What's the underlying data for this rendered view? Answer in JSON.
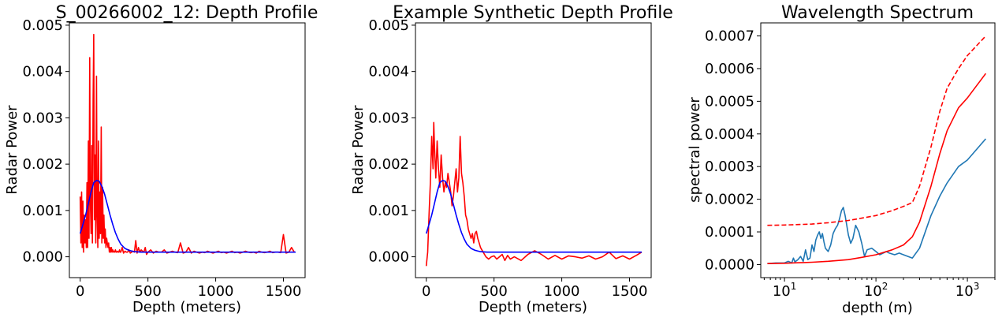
{
  "chart_data": [
    {
      "type": "line",
      "title": "S_00266002_12: Depth Profile",
      "xlabel": "Depth (meters)",
      "ylabel": "Radar Power",
      "xlim": [
        -80,
        1660
      ],
      "ylim": [
        -0.00045,
        0.00505
      ],
      "xticks": [
        0,
        500,
        1000,
        1500
      ],
      "xtick_labels": [
        "0",
        "500",
        "1000",
        "1500"
      ],
      "yticks": [
        0,
        0.001,
        0.002,
        0.003,
        0.004,
        0.005
      ],
      "ytick_labels": [
        "0.000",
        "0.001",
        "0.002",
        "0.003",
        "0.004",
        "0.005"
      ],
      "series": [
        {
          "color": "#ff0000",
          "style": "solid",
          "x": [
            0,
            5,
            10,
            15,
            20,
            25,
            30,
            35,
            40,
            45,
            50,
            55,
            60,
            65,
            70,
            75,
            80,
            85,
            90,
            95,
            100,
            105,
            110,
            115,
            120,
            125,
            130,
            135,
            140,
            145,
            150,
            155,
            160,
            165,
            170,
            175,
            180,
            185,
            190,
            195,
            200,
            205,
            210,
            215,
            220,
            225,
            230,
            235,
            240,
            245,
            250,
            255,
            260,
            265,
            270,
            275,
            280,
            285,
            290,
            295,
            300,
            310,
            320,
            330,
            340,
            350,
            360,
            370,
            380,
            390,
            400,
            410,
            420,
            430,
            440,
            450,
            460,
            470,
            480,
            490,
            500,
            520,
            540,
            560,
            580,
            600,
            620,
            640,
            660,
            680,
            700,
            720,
            740,
            760,
            780,
            800,
            820,
            840,
            860,
            880,
            900,
            920,
            940,
            960,
            980,
            1000,
            1020,
            1040,
            1060,
            1080,
            1100,
            1120,
            1140,
            1160,
            1180,
            1200,
            1220,
            1240,
            1260,
            1280,
            1300,
            1320,
            1340,
            1360,
            1380,
            1400,
            1420,
            1440,
            1460,
            1480,
            1500,
            1520,
            1540,
            1560,
            1580
          ],
          "y": [
            0.0013,
            0.0003,
            0.0014,
            0.0002,
            0.0012,
            0.0001,
            0.0009,
            0.0003,
            0.0008,
            0.0002,
            0.0016,
            0.0002,
            0.0025,
            0.0004,
            0.0043,
            0.0012,
            0.0005,
            0.0024,
            0.0003,
            0.0034,
            0.0048,
            0.0008,
            0.0022,
            0.0003,
            0.0039,
            0.0009,
            0.0002,
            0.0025,
            0.0004,
            0.0014,
            0.0005,
            0.0028,
            0.0003,
            0.0015,
            0.0004,
            0.0009,
            0.0003,
            0.0006,
            0.0002,
            0.0004,
            0.0003,
            0.0002,
            0.0003,
            0.0001,
            0.0002,
            0.0001,
            0.0002,
            0.0001,
            0.00015,
            0.0001,
            0.00012,
            0.0001,
            0.00015,
            0.0001,
            0.0001,
            0.00012,
            0.0001,
            0.0001,
            0.00015,
            0.0001,
            0.0001,
            0.0002,
            8e-05,
            0.00012,
            0.0001,
            0.0001,
            0.00015,
            8e-05,
            0.0001,
            0.00012,
            0.0001,
            0.00035,
            8e-05,
            0.0002,
            0.0001,
            0.00015,
            0.00012,
            0.0001,
            0.0002,
            5e-05,
            0.0001,
            0.00015,
            8e-05,
            0.00012,
            0.0001,
            0.0001,
            0.00015,
            8e-05,
            0.0001,
            0.00012,
            0.0001,
            9e-05,
            0.0003,
            8e-05,
            0.0001,
            0.0002,
            8e-05,
            0.00012,
            0.0001,
            8e-05,
            0.0001,
            9e-05,
            0.00012,
            0.0001,
            8e-05,
            0.0001,
            0.00012,
            9e-05,
            0.0001,
            8e-05,
            0.0001,
            0.00012,
            9e-05,
            0.0001,
            8e-05,
            0.0001,
            0.00012,
            0.0001,
            9e-05,
            0.0001,
            8e-05,
            0.00012,
            0.0001,
            9e-05,
            0.0001,
            0.00012,
            9e-05,
            0.0001,
            0.0001,
            9e-05,
            0.00048,
            8e-05,
            0.0001,
            0.0002,
            0.0001
          ]
        },
        {
          "color": "#0000ff",
          "style": "solid",
          "x": [
            0,
            20,
            40,
            60,
            80,
            100,
            120,
            140,
            160,
            180,
            200,
            220,
            240,
            260,
            280,
            300,
            330,
            360,
            400,
            450,
            500,
            600,
            800,
            1000,
            1200,
            1400,
            1590
          ],
          "y": [
            0.0005,
            0.0007,
            0.0009,
            0.00115,
            0.0014,
            0.0016,
            0.00165,
            0.00163,
            0.00152,
            0.00135,
            0.00113,
            0.0009,
            0.0007,
            0.00052,
            0.00038,
            0.00027,
            0.00018,
            0.00014,
            0.00011,
            0.0001,
            0.0001,
            0.0001,
            0.0001,
            0.0001,
            0.0001,
            0.0001,
            0.0001
          ]
        }
      ]
    },
    {
      "type": "line",
      "title": "Example Synthetic Depth Profile",
      "xlabel": "Depth (meters)",
      "ylabel": "Radar Power",
      "xlim": [
        -80,
        1660
      ],
      "ylim": [
        -0.00045,
        0.00505
      ],
      "xticks": [
        0,
        500,
        1000,
        1500
      ],
      "xtick_labels": [
        "0",
        "500",
        "1000",
        "1500"
      ],
      "yticks": [
        0,
        0.001,
        0.002,
        0.003,
        0.004,
        0.005
      ],
      "ytick_labels": [
        "0.000",
        "0.001",
        "0.002",
        "0.003",
        "0.004",
        "0.005"
      ],
      "series": [
        {
          "color": "#ff0000",
          "style": "solid",
          "x": [
            0,
            10,
            20,
            30,
            40,
            50,
            55,
            60,
            70,
            80,
            90,
            100,
            110,
            120,
            130,
            140,
            150,
            160,
            170,
            180,
            190,
            200,
            210,
            220,
            230,
            240,
            250,
            260,
            270,
            280,
            290,
            300,
            310,
            320,
            330,
            340,
            350,
            360,
            370,
            380,
            390,
            400,
            420,
            440,
            460,
            480,
            500,
            520,
            540,
            560,
            580,
            600,
            620,
            650,
            700,
            750,
            800,
            850,
            900,
            950,
            1000,
            1050,
            1100,
            1150,
            1200,
            1250,
            1300,
            1350,
            1400,
            1450,
            1500,
            1550,
            1590
          ],
          "y": [
            -0.0002,
            0.0001,
            0.0009,
            0.0016,
            0.0026,
            0.0019,
            0.0029,
            0.0024,
            0.0017,
            0.0025,
            0.0019,
            0.0015,
            0.0022,
            0.0017,
            0.0014,
            0.0016,
            0.0015,
            0.0018,
            0.0016,
            0.0014,
            0.0011,
            0.0013,
            0.0016,
            0.0019,
            0.0014,
            0.0017,
            0.0026,
            0.0018,
            0.0016,
            0.0013,
            0.0009,
            0.0008,
            0.0006,
            0.0005,
            0.0004,
            0.0005,
            0.0003,
            0.0005,
            0.00055,
            0.0004,
            0.0003,
            0.0002,
            0.0001,
            0.0,
            -5e-05,
            0.0,
            2e-05,
            -5e-05,
            0.0,
            5e-05,
            -8e-05,
            3e-05,
            -5e-05,
            0.0,
            -8e-05,
            5e-05,
            0.00013,
            5e-05,
            -5e-05,
            3e-05,
            -5e-05,
            2e-05,
            0.0,
            -3e-05,
            2e-05,
            -5e-05,
            0.0,
            0.0001,
            -4e-05,
            2e-05,
            -5e-05,
            3e-05,
            0.0001
          ]
        },
        {
          "color": "#0000ff",
          "style": "solid",
          "x": [
            0,
            20,
            40,
            60,
            80,
            100,
            120,
            140,
            160,
            180,
            200,
            220,
            240,
            260,
            280,
            300,
            330,
            360,
            400,
            450,
            500,
            600,
            800,
            1000,
            1200,
            1400,
            1590
          ],
          "y": [
            0.0005,
            0.0007,
            0.0009,
            0.00115,
            0.0014,
            0.0016,
            0.00165,
            0.00163,
            0.00152,
            0.00135,
            0.00113,
            0.0009,
            0.0007,
            0.00052,
            0.00038,
            0.00027,
            0.00018,
            0.00014,
            0.00011,
            0.0001,
            0.0001,
            0.0001,
            0.0001,
            0.0001,
            0.0001,
            0.0001,
            0.0001
          ]
        }
      ]
    },
    {
      "type": "line",
      "title": "Wavelength Spectrum",
      "xlabel": "depth (m)",
      "ylabel": "spectral power",
      "xscale": "log",
      "xlim": [
        5.5,
        2000
      ],
      "ylim": [
        -4e-05,
        0.00074
      ],
      "xticks": [
        10,
        100,
        1000
      ],
      "xtick_labels": [
        {
          "base": "10",
          "exp": "1"
        },
        {
          "base": "10",
          "exp": "2"
        },
        {
          "base": "10",
          "exp": "3"
        }
      ],
      "yticks": [
        0,
        0.0001,
        0.0002,
        0.0003,
        0.0004,
        0.0005,
        0.0006,
        0.0007
      ],
      "ytick_labels": [
        "0.0000",
        "0.0001",
        "0.0002",
        "0.0003",
        "0.0004",
        "0.0005",
        "0.0006",
        "0.0007"
      ],
      "series": [
        {
          "color": "#1f77b4",
          "style": "solid",
          "x": [
            6.5,
            8,
            10,
            11,
            12,
            12.5,
            13,
            14,
            15,
            16,
            17,
            18,
            19,
            20,
            21,
            22,
            23,
            24,
            25,
            26,
            27,
            28,
            30,
            32,
            34,
            36,
            38,
            40,
            42,
            44,
            46,
            48,
            50,
            53,
            56,
            60,
            65,
            70,
            75,
            80,
            90,
            100,
            110,
            120,
            130,
            140,
            160,
            180,
            200,
            250,
            300,
            400,
            500,
            600,
            800,
            1000,
            1590
          ],
          "y": [
            3e-06,
            5e-06,
            5e-06,
            1e-05,
            5e-06,
            2e-05,
            8e-06,
            1.5e-05,
            2.5e-05,
            1e-05,
            4.5e-05,
            1.5e-05,
            2e-05,
            6e-05,
            4e-05,
            7.5e-05,
            9e-05,
            0.0001,
            8e-05,
            9.5e-05,
            7e-05,
            5e-05,
            4e-05,
            6e-05,
            9.5e-05,
            0.00011,
            0.00012,
            0.00014,
            0.000165,
            0.000175,
            0.00015,
            0.00012,
            9e-05,
            6.5e-05,
            8e-05,
            0.00012,
            0.0001,
            6.5e-05,
            2.5e-05,
            4.5e-05,
            5e-05,
            4e-05,
            3e-05,
            3.5e-05,
            4e-05,
            3.5e-05,
            3e-05,
            3.5e-05,
            3e-05,
            2e-05,
            5e-05,
            0.00015,
            0.00021,
            0.00025,
            0.0003,
            0.00032,
            0.000385
          ]
        },
        {
          "color": "#ff0000",
          "style": "solid",
          "x": [
            6.5,
            10,
            20,
            30,
            50,
            70,
            100,
            150,
            200,
            250,
            300,
            400,
            500,
            600,
            800,
            1000,
            1590
          ],
          "y": [
            3e-06,
            4e-06,
            7e-06,
            1e-05,
            1.5e-05,
            2.2e-05,
            3e-05,
            4.5e-05,
            6e-05,
            8.5e-05,
            0.00013,
            0.00024,
            0.00034,
            0.00041,
            0.00048,
            0.00051,
            0.000585
          ]
        },
        {
          "color": "#ff0000",
          "style": "dashed",
          "x": [
            6.5,
            10,
            20,
            30,
            50,
            70,
            100,
            150,
            200,
            250,
            300,
            400,
            500,
            600,
            800,
            1000,
            1590
          ],
          "y": [
            0.00012,
            0.000121,
            0.000124,
            0.000128,
            0.000135,
            0.000142,
            0.00015,
            0.000165,
            0.000178,
            0.00019,
            0.00024,
            0.00036,
            0.00047,
            0.00054,
            0.0006,
            0.00064,
            0.0007
          ]
        }
      ]
    }
  ]
}
